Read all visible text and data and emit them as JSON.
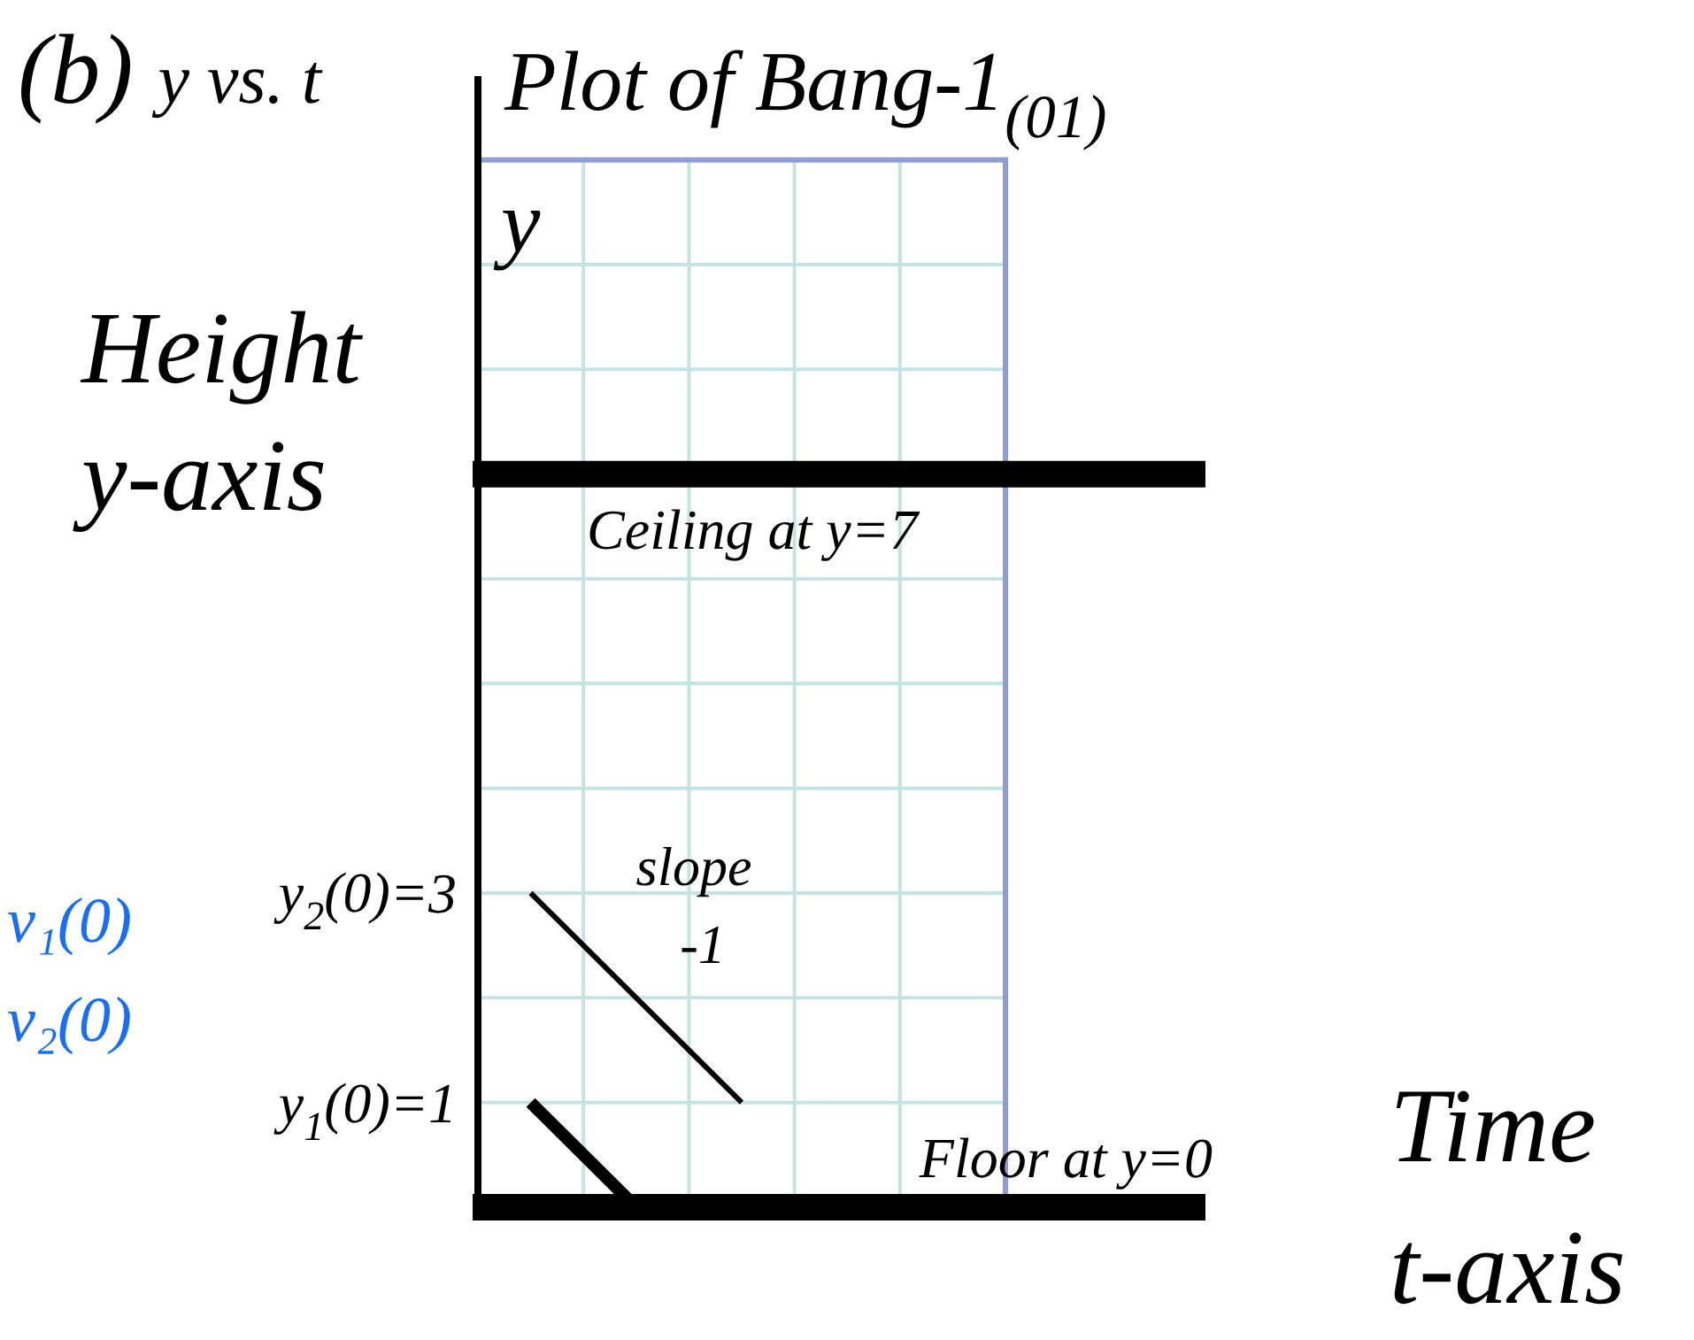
{
  "chart_data": {
    "type": "line",
    "title": "(b) y vs. t",
    "subtitle": "Plot of Bang-1$_{(01)}$",
    "xlabel": "Time t-axis",
    "ylabel": "Height y-axis",
    "categories": [
      null,
      null,
      null,
      null,
      null
    ],
    "series": [
      {
        "color": "#000000",
        "values": [
          3,
          2,
          1,
          null,
          null
        ]
      },
      {
        "color": "#000000",
        "values": [
          1,
          0,
          null,
          null,
          null
        ]
      }
    ],
    "ylim": [
      0,
      10.8
    ],
    "yticks": [
      {
        "value": 0,
        "label": null
      },
      1,
      {
        "value": 2,
        "label": null
      },
      3,
      {
        "value": 4,
        "label": null
      },
      {
        "value": 5,
        "label": null
      },
      {
        "value": 6,
        "label": null
      },
      {
        "value": 8,
        "label": null
      },
      {
        "value": 9,
        "label": null
      },
      {
        "value": 10,
        "label": null
      }
    ],
    "grid": true,
    "tick_labels": "y",
    "ref_lines": [
      {
        "axis": "y",
        "value": 7,
        "label": "Ceiling at y=7",
        "color": "#000000"
      },
      {
        "axis": "y",
        "value": 0,
        "label": "Floor at y=0",
        "color": "#000000"
      }
    ],
    "annotations": [
      "y$_{2}$(0)=",
      "y$_{1}$(0)=",
      "y",
      "slope -1",
      "v₁(0)",
      "v₂(0)"
    ]
  }
}
